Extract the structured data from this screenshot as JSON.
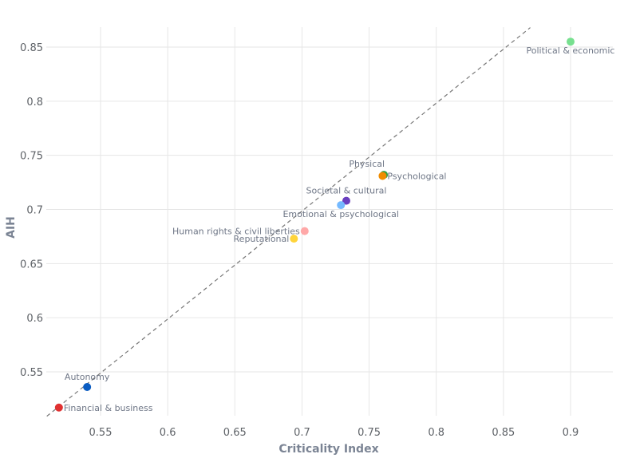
{
  "chart_data": {
    "type": "scatter",
    "xlabel": "Criticality Index",
    "ylabel": "AIH",
    "xlim": [
      0.51,
      0.93
    ],
    "ylim": [
      0.507,
      0.868
    ],
    "x_ticks": [
      0.55,
      0.6,
      0.65,
      0.7,
      0.75,
      0.8,
      0.85,
      0.9
    ],
    "x_tick_labels": [
      "0.55",
      "0.6",
      "0.65",
      "0.7",
      "0.75",
      "0.8",
      "0.85",
      "0.9"
    ],
    "y_ticks": [
      0.55,
      0.6,
      0.65,
      0.7,
      0.75,
      0.8,
      0.85
    ],
    "y_tick_labels": [
      "0.55",
      "0.6",
      "0.65",
      "0.7",
      "0.75",
      "0.8",
      "0.85"
    ],
    "grid": true,
    "reference_line": {
      "style": "dashed",
      "points": [
        [
          0.51,
          0.509
        ],
        [
          0.87,
          0.868
        ]
      ]
    },
    "points": [
      {
        "label": "Political & economic",
        "x": 0.9,
        "y": 0.855,
        "color": "#77e08f",
        "label_pos": "below"
      },
      {
        "label": "Physical",
        "x": 0.761,
        "y": 0.732,
        "color": "#2f9e44",
        "label_pos": "above-left"
      },
      {
        "label": "Psychological",
        "x": 0.76,
        "y": 0.731,
        "color": "#f08c00",
        "label_pos": "right"
      },
      {
        "label": "Societal & cultural",
        "x": 0.733,
        "y": 0.708,
        "color": "#6a3fbf",
        "label_pos": "above"
      },
      {
        "label": "Emotional & psychological",
        "x": 0.729,
        "y": 0.704,
        "color": "#74b9ff",
        "label_pos": "below"
      },
      {
        "label": "Human rights & civil liberties",
        "x": 0.702,
        "y": 0.68,
        "color": "#ffa8a8",
        "label_pos": "left"
      },
      {
        "label": "Reputational",
        "x": 0.694,
        "y": 0.673,
        "color": "#ffd43b",
        "label_pos": "left"
      },
      {
        "label": "Autonomy",
        "x": 0.54,
        "y": 0.536,
        "color": "#0a5cc2",
        "label_pos": "above"
      },
      {
        "label": "Financial & business",
        "x": 0.519,
        "y": 0.517,
        "color": "#e03131",
        "label_pos": "right"
      }
    ]
  }
}
